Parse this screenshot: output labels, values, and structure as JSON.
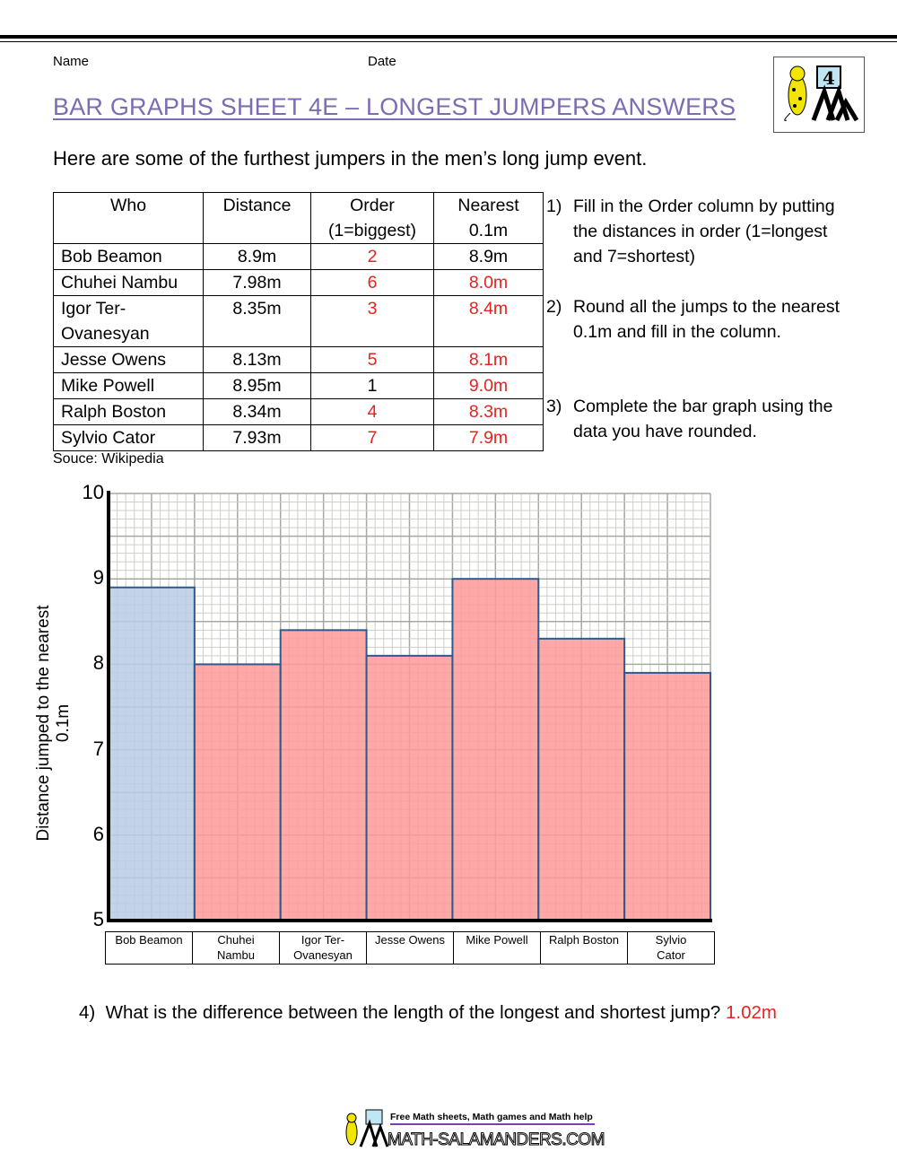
{
  "header": {
    "name_label": "Name",
    "date_label": "Date",
    "grade_badge": "4"
  },
  "title": "BAR GRAPHS SHEET 4E – LONGEST JUMPERS ANSWERS",
  "intro": "Here are some of the furthest jumpers in the men’s long jump event.",
  "table": {
    "headers": [
      [
        "Who",
        ""
      ],
      [
        "Distance",
        ""
      ],
      [
        "Order",
        "(1=biggest)"
      ],
      [
        "Nearest",
        "0.1m"
      ]
    ],
    "rows": [
      {
        "who": "Bob Beamon",
        "distance": "8.9m",
        "order": "2",
        "nearest": "8.9m",
        "order_red": true,
        "nearest_red": false
      },
      {
        "who": "Chuhei Nambu",
        "distance": "7.98m",
        "order": "6",
        "nearest": "8.0m",
        "order_red": true,
        "nearest_red": true
      },
      {
        "who": "Igor Ter-Ovanesyan",
        "who_lines": [
          "Igor Ter-",
          "Ovanesyan"
        ],
        "distance": "8.35m",
        "order": "3",
        "nearest": "8.4m",
        "order_red": true,
        "nearest_red": true
      },
      {
        "who": "Jesse Owens",
        "distance": "8.13m",
        "order": "5",
        "nearest": "8.1m",
        "order_red": true,
        "nearest_red": true
      },
      {
        "who": "Mike Powell",
        "distance": "8.95m",
        "order": "1",
        "nearest": "9.0m",
        "order_red": false,
        "nearest_red": true
      },
      {
        "who": "Ralph Boston",
        "distance": "8.34m",
        "order": "4",
        "nearest": "8.3m",
        "order_red": true,
        "nearest_red": true
      },
      {
        "who": "Sylvio Cator",
        "distance": "7.93m",
        "order": "7",
        "nearest": "7.9m",
        "order_red": true,
        "nearest_red": true
      }
    ],
    "source": "Souce: Wikipedia"
  },
  "instructions": [
    {
      "num": "1)",
      "text": "Fill in the Order column by putting the distances in order (1=longest and 7=shortest)"
    },
    {
      "num": "2)",
      "text": "Round all the jumps to the nearest 0.1m and fill in the column."
    },
    {
      "num": "3)",
      "text": "Complete the bar graph using the data you have rounded."
    }
  ],
  "chart_data": {
    "type": "bar",
    "categories": [
      "Bob Beamon",
      "Chuhei Nambu",
      "Igor Ter-Ovanesyan",
      "Jesse Owens",
      "Mike Powell",
      "Ralph Boston",
      "Sylvio Cator"
    ],
    "category_lines": [
      [
        "Bob Beamon"
      ],
      [
        "Chuhei",
        "Nambu"
      ],
      [
        "Igor Ter-",
        "Ovanesyan"
      ],
      [
        "Jesse Owens"
      ],
      [
        "Mike Powell"
      ],
      [
        "Ralph Boston"
      ],
      [
        "Sylvio",
        "Cator"
      ]
    ],
    "values": [
      8.9,
      8.0,
      8.4,
      8.1,
      9.0,
      8.3,
      7.9
    ],
    "bar_colors": [
      "#b8cce4",
      "#ff9999",
      "#ff9999",
      "#ff9999",
      "#ff9999",
      "#ff9999",
      "#ff9999"
    ],
    "bar_border": "#2e5a8e",
    "ylabel": "Distance jumped to the nearest 0.1m",
    "xlabel": "",
    "ylim": [
      5,
      10
    ],
    "yticks": [
      5,
      6,
      7,
      8,
      9,
      10
    ],
    "grid": true
  },
  "question4": {
    "num": "4)",
    "text": "What is the difference between the length of the longest and shortest jump?",
    "answer": "1.02m"
  },
  "footer": {
    "tagline": "Free Math sheets, Math games and Math help",
    "logo_text": "MATH-SALAMANDERS.COM"
  }
}
